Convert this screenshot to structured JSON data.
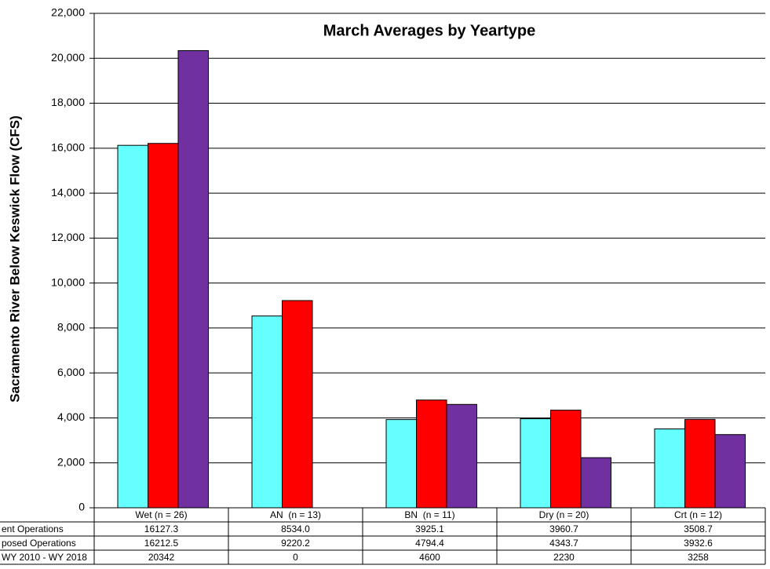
{
  "chart_data": {
    "type": "bar",
    "title": "March Averages by Yeartype",
    "y_label": "Sacramento River Below Keswick Flow (CFS)",
    "categories": [
      "Wet (n = 26)",
      "AN  (n = 13)",
      "BN  (n = 11)",
      "Dry (n = 20)",
      "Crt (n = 12)"
    ],
    "series": [
      {
        "name": "ent Operations",
        "color": "#66ffff",
        "values": [
          16127.3,
          8534.0,
          3925.1,
          3960.7,
          3508.7
        ],
        "value_labels": [
          "16127.3",
          "8534.0",
          "3925.1",
          "3960.7",
          "3508.7"
        ]
      },
      {
        "name": "posed Operations",
        "color": "#ff0000",
        "values": [
          16212.5,
          9220.2,
          4794.4,
          4343.7,
          3932.6
        ],
        "value_labels": [
          "16212.5",
          "9220.2",
          "4794.4",
          "4343.7",
          "3932.6"
        ]
      },
      {
        "name": "WY 2010 - WY 2018",
        "color": "#7030a0",
        "values": [
          20342,
          0,
          4600,
          2230,
          3258
        ],
        "value_labels": [
          "20342",
          "0",
          "4600",
          "2230",
          "3258"
        ]
      }
    ],
    "ylim": [
      0,
      22000
    ],
    "yticks": [
      0,
      {
        "value": 2000,
        "label": "2,000"
      },
      {
        "value": 4000,
        "label": "4,000"
      },
      {
        "value": 6000,
        "label": "6,000"
      },
      {
        "value": 8000,
        "label": "8,000"
      },
      {
        "value": 10000,
        "label": "10,000"
      },
      {
        "value": 12000,
        "label": "12,000"
      },
      {
        "value": 14000,
        "label": "14,000"
      },
      {
        "value": 16000,
        "label": "16,000"
      },
      {
        "value": 18000,
        "label": "18,000"
      },
      {
        "value": 20000,
        "label": "20,000"
      },
      {
        "value": 22000,
        "label": "22,000"
      }
    ],
    "grid": true
  }
}
